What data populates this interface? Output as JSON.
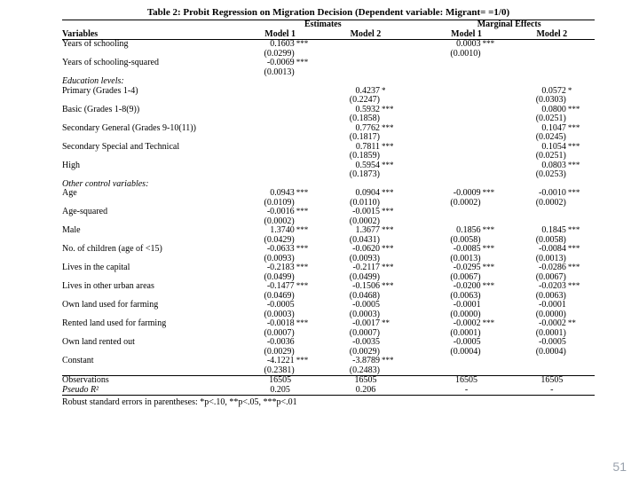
{
  "title": "Table 2: Probit Regression on Migration Decision (Dependent variable: Migrant= =1/0)",
  "headers": {
    "variables": "Variables",
    "estimates": "Estimates",
    "marginal": "Marginal Effects",
    "m1": "Model 1",
    "m2": "Model 2"
  },
  "sections": {
    "edu": "Education levels:",
    "other": "Other control variables:"
  },
  "rows": [
    {
      "label": "Years of schooling",
      "e1": "0.1603",
      "e1s": "***",
      "e1se": "(0.0299)",
      "m1": "0.0003",
      "m1s": "***",
      "m1se": "(0.0010)"
    },
    {
      "label": "Years of schooling-squared",
      "e1": "-0.0069",
      "e1s": "***",
      "e1se": "(0.0013)"
    }
  ],
  "edu_rows": [
    {
      "label": "Primary (Grades 1-4)",
      "e2": "0.4237",
      "e2s": "*",
      "e2se": "(0.2247)",
      "m2": "0.0572",
      "m2s": "*",
      "m2se": "(0.0303)"
    },
    {
      "label": "Basic (Grades 1-8(9))",
      "e2": "0.5932",
      "e2s": "***",
      "e2se": "(0.1858)",
      "m2": "0.0800",
      "m2s": "***",
      "m2se": "(0.0251)"
    },
    {
      "label": "Secondary General (Grades 9-10(11))",
      "e2": "0.7762",
      "e2s": "***",
      "e2se": "(0.1817)",
      "m2": "0.1047",
      "m2s": "***",
      "m2se": "(0.0245)"
    },
    {
      "label": "Secondary Special and Technical",
      "e2": "0.7811",
      "e2s": "***",
      "e2se": "(0.1859)",
      "m2": "0.1054",
      "m2s": "***",
      "m2se": "(0.0251)"
    },
    {
      "label": "High",
      "e2": "0.5954",
      "e2s": "***",
      "e2se": "(0.1873)",
      "m2": "0.0803",
      "m2s": "***",
      "m2se": "(0.0253)"
    }
  ],
  "other_rows": [
    {
      "label": "Age",
      "e1": "0.0943",
      "e1s": "***",
      "e1se": "(0.0109)",
      "e2": "0.0904",
      "e2s": "***",
      "e2se": "(0.0110)",
      "m1": "-0.0009",
      "m1s": "***",
      "m1se": "(0.0002)",
      "m2": "-0.0010",
      "m2s": "***",
      "m2se": "(0.0002)"
    },
    {
      "label": "Age-squared",
      "e1": "-0.0016",
      "e1s": "***",
      "e1se": "(0.0002)",
      "e2": "-0.0015",
      "e2s": "***",
      "e2se": "(0.0002)"
    },
    {
      "label": "Male",
      "e1": "1.3740",
      "e1s": "***",
      "e1se": "(0.0429)",
      "e2": "1.3677",
      "e2s": "***",
      "e2se": "(0.0431)",
      "m1": "0.1856",
      "m1s": "***",
      "m1se": "(0.0058)",
      "m2": "0.1845",
      "m2s": "***",
      "m2se": "(0.0058)"
    },
    {
      "label": "No. of children (age of <15)",
      "e1": "-0.0633",
      "e1s": "***",
      "e1se": "(0.0093)",
      "e2": "-0.0620",
      "e2s": "***",
      "e2se": "(0.0093)",
      "m1": "-0.0085",
      "m1s": "***",
      "m1se": "(0.0013)",
      "m2": "-0.0084",
      "m2s": "***",
      "m2se": "(0.0013)"
    },
    {
      "label": "Lives in the capital",
      "e1": "-0.2183",
      "e1s": "***",
      "e1se": "(0.0499)",
      "e2": "-0.2117",
      "e2s": "***",
      "e2se": "(0.0499)",
      "m1": "-0.0295",
      "m1s": "***",
      "m1se": "(0.0067)",
      "m2": "-0.0286",
      "m2s": "***",
      "m2se": "(0.0067)"
    },
    {
      "label": "Lives in other urban areas",
      "e1": "-0.1477",
      "e1s": "***",
      "e1se": "(0.0469)",
      "e2": "-0.1506",
      "e2s": "***",
      "e2se": "(0.0468)",
      "m1": "-0.0200",
      "m1s": "***",
      "m1se": "(0.0063)",
      "m2": "-0.0203",
      "m2s": "***",
      "m2se": "(0.0063)"
    },
    {
      "label": "Own land used for farming",
      "e1": "-0.0005",
      "e1se": "(0.0003)",
      "e2": "-0.0005",
      "e2se": "(0.0003)",
      "m1": "-0.0001",
      "m1se": "(0.0000)",
      "m2": "-0.0001",
      "m2se": "(0.0000)"
    },
    {
      "label": "Rented land used for farming",
      "e1": "-0.0018",
      "e1s": "***",
      "e1se": "(0.0007)",
      "e2": "-0.0017",
      "e2s": "**",
      "e2se": "(0.0007)",
      "m1": "-0.0002",
      "m1s": "***",
      "m1se": "(0.0001)",
      "m2": "-0.0002",
      "m2s": "**",
      "m2se": "(0.0001)"
    },
    {
      "label": "Own land rented out",
      "e1": "-0.0036",
      "e1se": "(0.0029)",
      "e2": "-0.0035",
      "e2se": "(0.0029)",
      "m1": "-0.0005",
      "m1se": "(0.0004)",
      "m2": "-0.0005",
      "m2se": "(0.0004)"
    },
    {
      "label": "Constant",
      "e1": "-4.1221",
      "e1s": "***",
      "e1se": "(0.2381)",
      "e2": "-3.8789",
      "e2s": "***",
      "e2se": "(0.2483)"
    }
  ],
  "footer": [
    {
      "label": "Observations",
      "e1": "16505",
      "e2": "16505",
      "m1": "16505",
      "m2": "16505"
    },
    {
      "label": "Pseudo R²",
      "italic": true,
      "e1": "0.205",
      "e2": "0.206",
      "m1": "-",
      "m2": "-"
    }
  ],
  "footnote": "Robust standard errors in parentheses: *p<.10, **p<.05, ***p<.01",
  "pagenum": "51"
}
